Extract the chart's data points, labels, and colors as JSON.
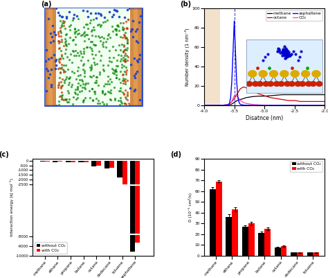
{
  "panel_b": {
    "x_range": [
      -4.0,
      -2.0
    ],
    "y_range": [
      0,
      100
    ],
    "xlabel": "Disatnce (nm)",
    "ylabel": "Number density (1 nm⁻³)",
    "dashed_x": -3.5,
    "methane_x": [
      -4.0,
      -3.9,
      -3.8,
      -3.75,
      -3.7,
      -3.65,
      -3.6,
      -3.55,
      -3.5,
      -3.45,
      -3.4,
      -3.35,
      -3.3,
      -3.2,
      -3.1,
      -3.0,
      -2.9,
      -2.8,
      -2.7,
      -2.6,
      -2.5,
      -2.4,
      -2.3,
      -2.2,
      -2.1,
      -2.0
    ],
    "methane_y": [
      0,
      0,
      0,
      0,
      0,
      0,
      0.5,
      1,
      3,
      5,
      6,
      7,
      8,
      9,
      9.5,
      9.5,
      10,
      10.5,
      11,
      11,
      11,
      11,
      11,
      11,
      11,
      11
    ],
    "octane_x": [
      -4.0,
      -3.8,
      -3.75,
      -3.7,
      -3.65,
      -3.6,
      -3.55,
      -3.5,
      -3.45,
      -3.4,
      -3.35,
      -3.3,
      -3.2,
      -3.1,
      -3.0,
      -2.9,
      -2.8,
      -2.7,
      -2.6,
      -2.5,
      -2.4,
      -2.3,
      -2.2,
      -2.1,
      -2.0
    ],
    "octane_y": [
      0,
      0,
      0,
      0,
      0.5,
      1,
      3,
      7,
      12,
      17,
      19,
      18,
      15,
      12,
      10,
      8,
      7,
      6,
      5,
      5,
      4,
      4,
      4,
      4,
      4
    ],
    "asphaltene_x": [
      -4.0,
      -3.8,
      -3.7,
      -3.65,
      -3.6,
      -3.58,
      -3.56,
      -3.54,
      -3.52,
      -3.5,
      -3.48,
      -3.46,
      -3.44,
      -3.42,
      -3.4,
      -3.35,
      -3.3,
      -3.2,
      -3.1,
      -3.0,
      -2.9,
      -2.0
    ],
    "asphaltene_y": [
      0,
      0,
      0,
      0.2,
      0.5,
      2,
      8,
      25,
      55,
      87,
      55,
      25,
      8,
      3,
      1,
      0.3,
      0.1,
      0,
      0,
      0,
      0,
      0
    ],
    "co2_x": [
      -4.0,
      -3.8,
      -3.75,
      -3.7,
      -3.65,
      -3.6,
      -3.55,
      -3.5,
      -3.48,
      -3.45,
      -3.42,
      -3.4,
      -3.35,
      -3.3,
      -3.2,
      -3.1,
      -3.0,
      -2.9,
      -2.8,
      -2.0
    ],
    "co2_y": [
      0,
      0,
      0,
      0,
      0.5,
      1,
      3,
      10,
      11,
      9,
      7,
      5,
      3,
      2,
      1,
      0.5,
      0.2,
      0.1,
      0,
      0
    ]
  },
  "panel_c": {
    "categories": [
      "methane",
      "ethane",
      "propane",
      "butane",
      "octane",
      "dodecane",
      "toluene",
      "asphaltene"
    ],
    "without_co2": [
      -100,
      -150,
      -180,
      -200,
      -580,
      -850,
      -1800,
      -9600
    ],
    "with_co2": [
      -75,
      -110,
      -150,
      -170,
      -520,
      -780,
      -2650,
      -8600
    ],
    "ylabel": "Interaction energy (kJ mol⁻¹)",
    "ylim": [
      -10000,
      0
    ],
    "yticks": [
      0,
      -500,
      -1000,
      -1500,
      -2000,
      -2500,
      -8000,
      -9000,
      -10000
    ]
  },
  "panel_d": {
    "categories": [
      "methane",
      "ethane",
      "propane",
      "butane",
      "octane",
      "dodecane",
      "toluene"
    ],
    "without_co2": [
      62,
      36,
      27,
      21,
      7.5,
      3.0,
      3.0
    ],
    "with_co2": [
      69,
      43,
      30,
      25,
      9.0,
      3.0,
      3.0
    ],
    "without_co2_err": [
      1.5,
      2.5,
      1.5,
      1.5,
      0.8,
      0.3,
      0.3
    ],
    "with_co2_err": [
      1.2,
      1.8,
      1.5,
      1.5,
      0.8,
      0.3,
      0.3
    ],
    "ylabel": "D (10⁻⁵ cm²/s)",
    "ylim": [
      0,
      90
    ],
    "yticks": [
      0,
      10,
      20,
      30,
      40,
      50,
      60,
      70,
      80,
      90
    ]
  }
}
